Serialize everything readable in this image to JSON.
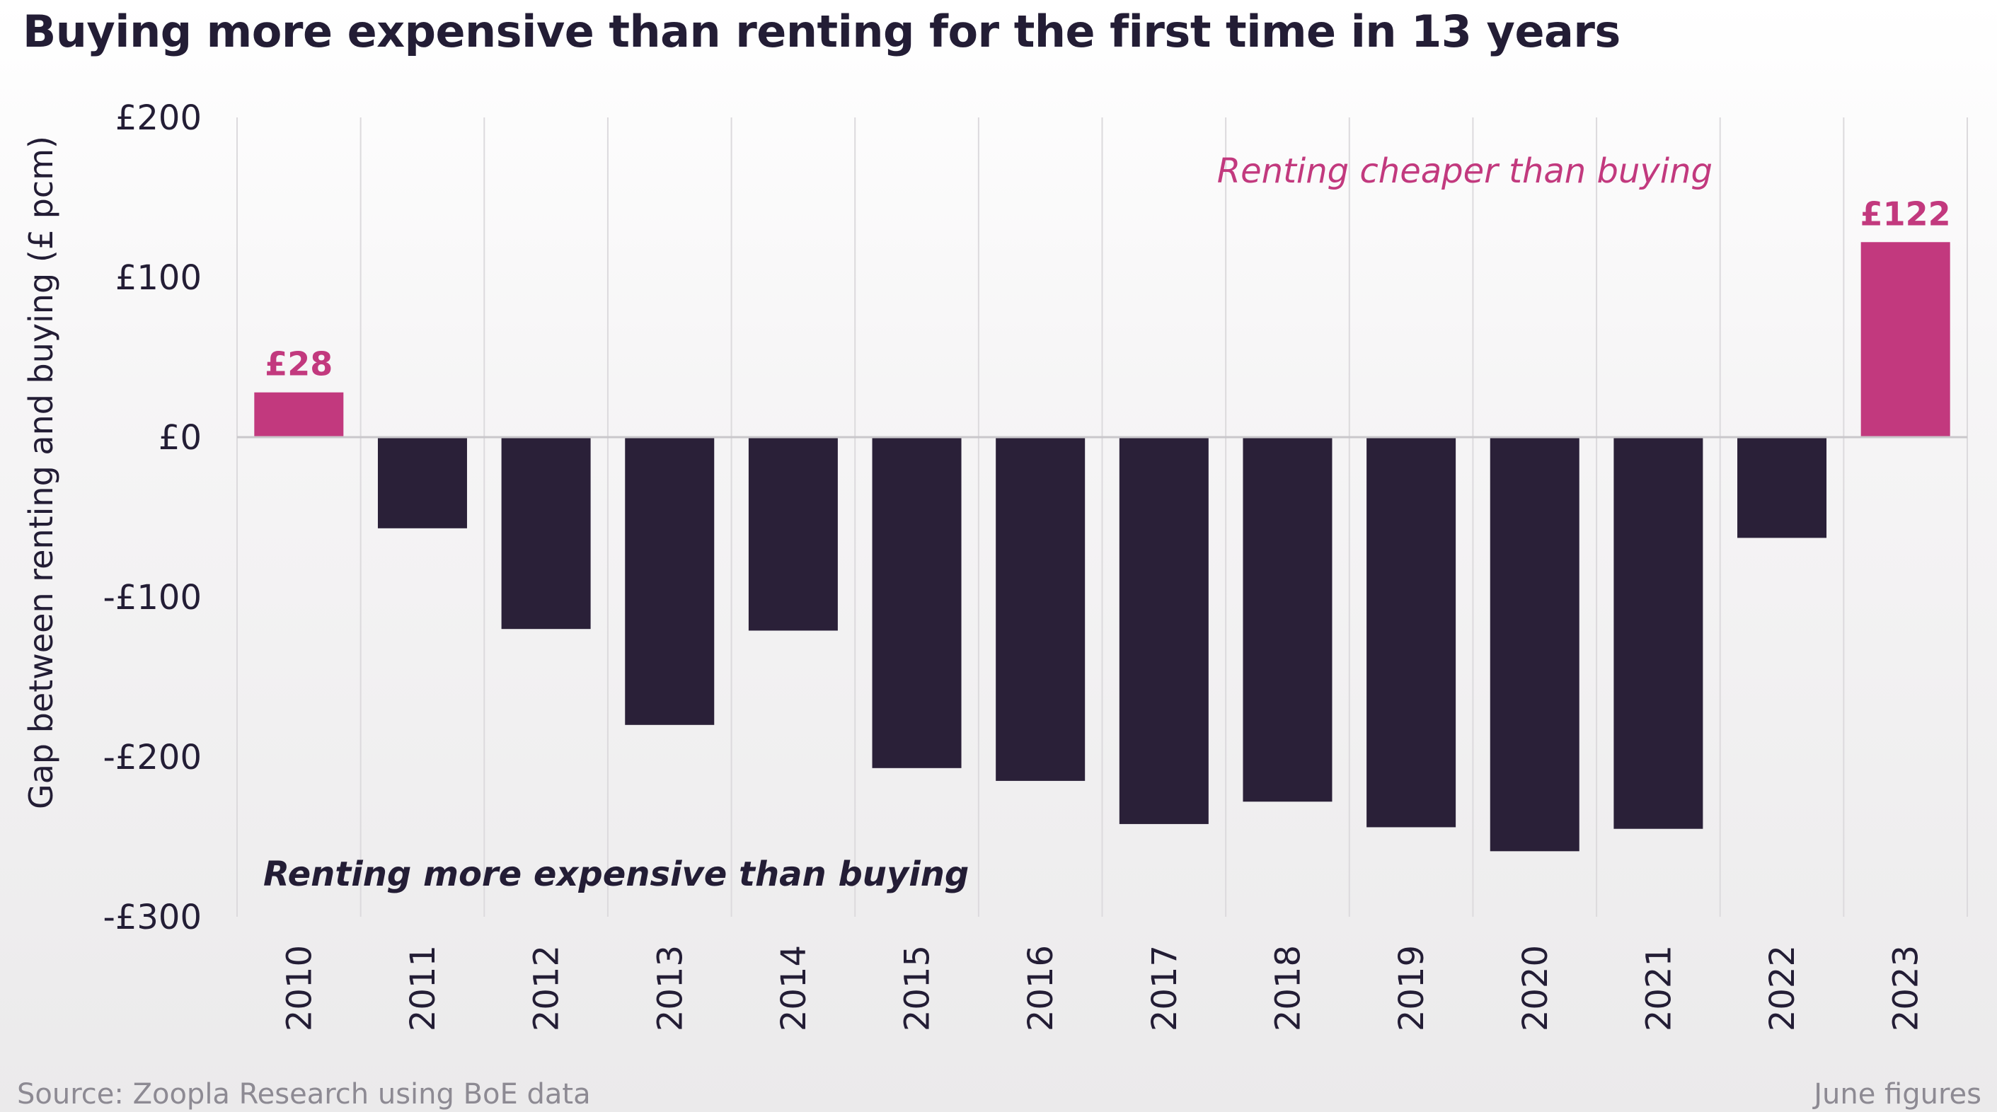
{
  "title": "Buying more expensive than renting for the first time in 13 years",
  "footer": {
    "source": "Source: Zoopla Research using BoE data",
    "note": "June figures"
  },
  "colors": {
    "positive": "#c2397e",
    "negative": "#2a2038",
    "text": "#231d35",
    "annotation_positive": "#c2397e",
    "annotation_negative": "#231d35",
    "grid": "#dcdadd"
  },
  "chart_data": {
    "type": "bar",
    "title": "Buying more expensive than renting for the first time in 13 years",
    "xlabel": "",
    "ylabel": "Gap between renting and buying (£ pcm)",
    "ylim": [
      -300,
      200
    ],
    "yticks": [
      200,
      100,
      0,
      -100,
      -200,
      -300
    ],
    "ytick_labels": [
      "£200",
      "£100",
      "£0",
      "-£100",
      "-£200",
      "-£300"
    ],
    "categories": [
      "2010",
      "2011",
      "2012",
      "2013",
      "2014",
      "2015",
      "2016",
      "2017",
      "2018",
      "2019",
      "2020",
      "2021",
      "2022",
      "2023"
    ],
    "values": [
      28,
      -57,
      -120,
      -180,
      -121,
      -207,
      -215,
      -242,
      -228,
      -244,
      -259,
      -245,
      -63,
      122
    ],
    "data_labels": [
      {
        "category": "2010",
        "text": "£28"
      },
      {
        "category": "2023",
        "text": "£122"
      }
    ],
    "annotations": [
      {
        "text": "Renting cheaper than buying",
        "style": "italic",
        "color": "positive"
      },
      {
        "text": "Renting more expensive than buying",
        "style": "italic",
        "color": "negative"
      }
    ],
    "grid": "vertical"
  }
}
